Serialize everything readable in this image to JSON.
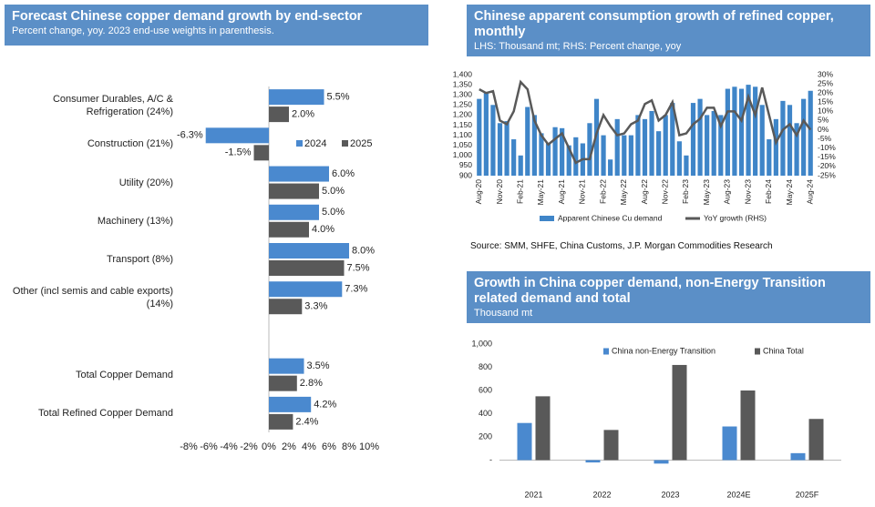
{
  "chart_data": [
    {
      "type": "bar",
      "orientation": "horizontal",
      "title": "Forecast Chinese copper demand growth by end-sector",
      "subtitle": "Percent change, yoy. 2023 end-use weights in parenthesis.",
      "categories": [
        "Consumer Durables, A/C & Refrigeration (24%)",
        "Construction (21%)",
        "Utility (20%)",
        "Machinery (13%)",
        "Transport (8%)",
        "Other (incl semis and cable exports) (14%)",
        null,
        "Total Copper Demand",
        "Total Refined Copper Demand"
      ],
      "series": [
        {
          "name": "2024",
          "color": "#4a89cf",
          "values": [
            5.5,
            -6.3,
            6.0,
            5.0,
            8.0,
            7.3,
            null,
            3.5,
            4.2
          ],
          "value_labels": [
            "5.5%",
            "-6.3%",
            "6.0%",
            "5.0%",
            "8.0%",
            "7.3%",
            null,
            "3.5%",
            "4.2%"
          ]
        },
        {
          "name": "2025",
          "color": "#595959",
          "values": [
            2.0,
            -1.5,
            5.0,
            4.0,
            7.5,
            3.3,
            null,
            2.8,
            2.4
          ],
          "value_labels": [
            "2.0%",
            "-1.5%",
            "5.0%",
            "4.0%",
            "7.5%",
            "3.3%",
            null,
            "2.8%",
            "2.4%"
          ]
        }
      ],
      "xlim": [
        -8,
        10
      ],
      "xticks": [
        {
          "value": -8,
          "label": "-8%"
        },
        {
          "value": -6,
          "label": "-6%"
        },
        {
          "value": -4,
          "label": "-4%"
        },
        {
          "value": -2,
          "label": "-2%"
        },
        {
          "value": 0,
          "label": "0%"
        },
        {
          "value": 2,
          "label": "2%"
        },
        {
          "value": 4,
          "label": "4%"
        },
        {
          "value": 6,
          "label": "6%"
        },
        {
          "value": 8,
          "label": "8%"
        },
        {
          "value": 10,
          "label": "10%"
        }
      ]
    },
    {
      "type": "combo",
      "title": "Chinese apparent consumption growth of refined copper, monthly",
      "subtitle": "LHS: Thousand mt; RHS: Percent change, yoy",
      "source": "Source: SMM, SHFE, China Customs, J.P. Morgan Commodities Research",
      "categories": [
        "Aug-20",
        null,
        null,
        "Nov-20",
        null,
        null,
        "Feb-21",
        null,
        null,
        "May-21",
        null,
        null,
        "Aug-21",
        null,
        null,
        "Nov-21",
        null,
        null,
        "Feb-22",
        null,
        null,
        "May-22",
        null,
        null,
        "Aug-22",
        null,
        null,
        "Nov-22",
        null,
        null,
        "Feb-23",
        null,
        null,
        "May-23",
        null,
        null,
        "Aug-23",
        null,
        null,
        "Nov-23",
        null,
        null,
        "Feb-24",
        null,
        null,
        "May-24",
        null,
        null,
        "Aug-24"
      ],
      "series": [
        {
          "name": "Apparent Chinese Cu demand",
          "color": "#3f85c8",
          "kind": "bar",
          "axis": "y",
          "values": [
            1280,
            1310,
            1250,
            1160,
            1170,
            1080,
            1000,
            1240,
            1200,
            1110,
            1060,
            1140,
            1135,
            1050,
            1090,
            1060,
            1160,
            1280,
            1100,
            980,
            1180,
            1100,
            1100,
            1200,
            1180,
            1220,
            1120,
            1200,
            1260,
            1070,
            1000,
            1260,
            1280,
            1200,
            1220,
            1200,
            1330,
            1340,
            1330,
            1350,
            1340,
            1250,
            1080,
            1180,
            1270,
            1250,
            1160,
            1280,
            1320
          ]
        },
        {
          "name": "YoY growth (RHS)",
          "color": "#595959",
          "kind": "line",
          "axis": "y2",
          "values": [
            22,
            20,
            21,
            5,
            3,
            10,
            26,
            22,
            5,
            -3,
            -8,
            -5,
            -2,
            -10,
            -18,
            -16,
            -16,
            -2,
            8,
            2,
            -3,
            -2,
            3,
            5,
            14,
            16,
            5,
            8,
            15,
            -3,
            -2,
            3,
            6,
            12,
            12,
            2,
            10,
            10,
            5,
            18,
            8,
            23,
            8,
            -7,
            0,
            3,
            -3,
            5,
            0
          ]
        }
      ],
      "ylim": [
        900,
        1400
      ],
      "yticks": [
        900,
        950,
        {
          "value": 1000,
          "label": "1,000"
        },
        {
          "value": 1050,
          "label": "1,050"
        },
        {
          "value": 1100,
          "label": "1,100"
        },
        {
          "value": 1150,
          "label": "1,150"
        },
        {
          "value": 1200,
          "label": "1,200"
        },
        {
          "value": 1250,
          "label": "1,250"
        },
        {
          "value": 1300,
          "label": "1,300"
        },
        {
          "value": 1350,
          "label": "1,350"
        },
        {
          "value": 1400,
          "label": "1,400"
        }
      ],
      "y2lim": [
        -25,
        30
      ],
      "y2ticks": [
        {
          "value": -25,
          "label": "-25%"
        },
        {
          "value": -20,
          "label": "-20%"
        },
        {
          "value": -15,
          "label": "-15%"
        },
        {
          "value": -10,
          "label": "-10%"
        },
        {
          "value": -5,
          "label": "-5%"
        },
        {
          "value": 0,
          "label": "0%"
        },
        {
          "value": 5,
          "label": "5%"
        },
        {
          "value": 10,
          "label": "10%"
        },
        {
          "value": 15,
          "label": "15%"
        },
        {
          "value": 20,
          "label": "20%"
        },
        {
          "value": 25,
          "label": "25%"
        },
        {
          "value": 30,
          "label": "30%"
        }
      ]
    },
    {
      "type": "bar",
      "title": "Growth in China copper demand, non-Energy Transition related demand and total",
      "subtitle": "Thousand mt",
      "categories": [
        "2021",
        "2022",
        "2023",
        "2024E",
        "2025F"
      ],
      "series": [
        {
          "name": "China non-Energy Transition",
          "color": "#4a89cf",
          "values": [
            320,
            -20,
            -30,
            290,
            60
          ]
        },
        {
          "name": "China Total",
          "color": "#595959",
          "values": [
            550,
            260,
            820,
            600,
            355
          ]
        }
      ],
      "ylim": [
        -200,
        1000
      ],
      "yticks": [
        {
          "value": 0,
          "label": "-"
        },
        200,
        400,
        600,
        800,
        {
          "value": 1000,
          "label": "1,000"
        }
      ]
    }
  ]
}
